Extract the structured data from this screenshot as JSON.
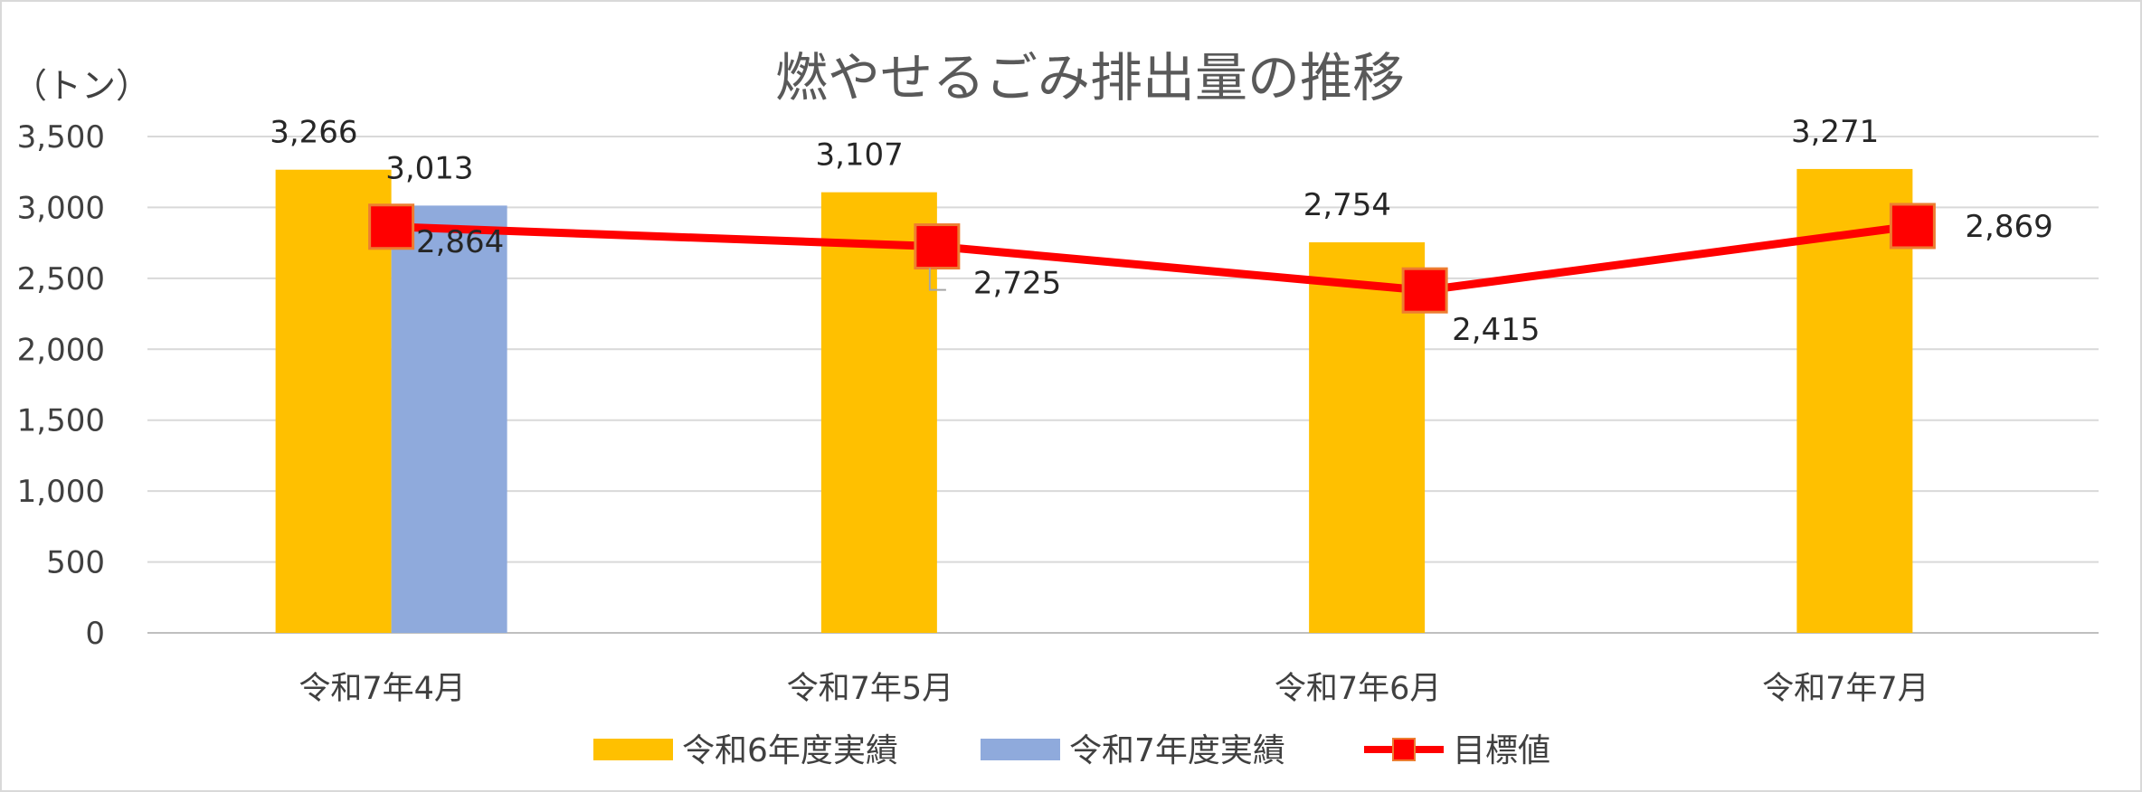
{
  "chart_data": {
    "type": "bar",
    "title": "燃やせるごみ排出量の推移",
    "unit_label": "（トン）",
    "categories": [
      "令和7年4月",
      "令和7年5月",
      "令和7年6月",
      "令和7年7月"
    ],
    "ylim": [
      0,
      3500
    ],
    "yticks": [
      0,
      500,
      1000,
      1500,
      2000,
      2500,
      3000,
      3500
    ],
    "ytick_labels": [
      "0",
      "500",
      "1,000",
      "1,500",
      "2,000",
      "2,500",
      "3,000",
      "3,500"
    ],
    "grid": true,
    "legend_position": "bottom",
    "series": [
      {
        "name": "令和6年度実績",
        "kind": "bar",
        "color": "#FFC000",
        "values": [
          3266,
          3107,
          2754,
          3271
        ],
        "labels": [
          "3,266",
          "3,107",
          "2,754",
          "3,271"
        ]
      },
      {
        "name": "令和7年度実績",
        "kind": "bar",
        "color": "#8FAADC",
        "values": [
          3013,
          null,
          null,
          null
        ],
        "labels": [
          "3,013",
          null,
          null,
          null
        ]
      },
      {
        "name": "目標値",
        "kind": "line",
        "color": "#FF0000",
        "marker": "square",
        "values": [
          2864,
          2725,
          2415,
          2869
        ],
        "labels": [
          "2,864",
          "2,725",
          "2,415",
          "2,869"
        ]
      }
    ]
  }
}
